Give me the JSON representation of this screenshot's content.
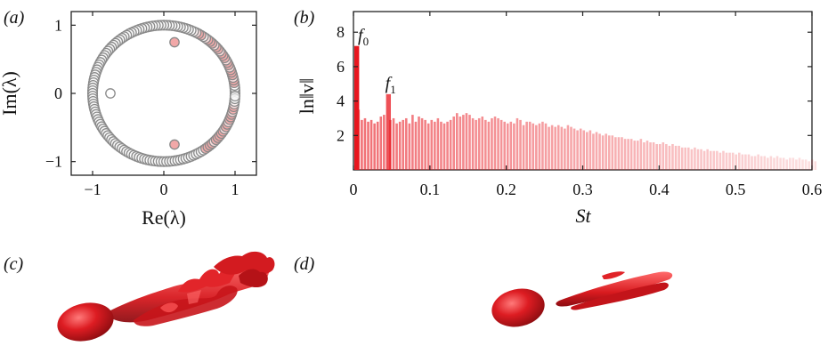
{
  "panels": {
    "a": "(a)",
    "b": "(b)",
    "c": "(c)",
    "d": "(d)"
  },
  "chart_data": [
    {
      "type": "scatter",
      "panel": "(a)",
      "xlabel": "Re(λ)",
      "ylabel": "Im(λ)",
      "xlim": [
        -1.3,
        1.3
      ],
      "ylim": [
        -1.2,
        1.2
      ],
      "xticks": [
        "−1",
        "0",
        "1"
      ],
      "yticks": [
        "−1",
        "0",
        "1"
      ],
      "xtick_values": [
        -1,
        0,
        1
      ],
      "ytick_values": [
        -1,
        0,
        1
      ],
      "marker_edge_color": "#8a8a8a",
      "unit_circle_eigenvalues": 160,
      "highlight_color": "#f2a8a8",
      "highlight_angles_deg": [
        -52,
        -48,
        -40,
        -35,
        -28,
        -20,
        -12,
        10,
        18,
        26,
        34,
        42,
        50,
        60
      ],
      "inner_points": [
        {
          "re": 0.15,
          "im": 0.75,
          "pink": true
        },
        {
          "re": 0.15,
          "im": -0.75,
          "pink": true
        },
        {
          "re": -0.75,
          "im": 0.0,
          "pink": false
        }
      ]
    },
    {
      "type": "bar",
      "panel": "(b)",
      "xlabel": "St",
      "ylabel": "ln‖v‖",
      "xlim": [
        0,
        0.6
      ],
      "ylim": [
        0,
        9.2
      ],
      "xticks": [
        "0",
        "0.1",
        "0.2",
        "0.3",
        "0.4",
        "0.5",
        "0.6"
      ],
      "xtick_values": [
        0,
        0.1,
        0.2,
        0.3,
        0.4,
        0.5,
        0.6
      ],
      "yticks": [
        "2",
        "4",
        "6",
        "8"
      ],
      "ytick_values": [
        2,
        4,
        6,
        8
      ],
      "bar_color": "#e8161e",
      "bar_count": 146,
      "x_start": 0.0,
      "x_step": 0.00415,
      "annotations": [
        {
          "text": "f",
          "sub": "0",
          "x": 0.0,
          "y": 7.7
        },
        {
          "text": "f",
          "sub": "1",
          "x": 0.045,
          "y": 4.9
        }
      ],
      "values": [
        7.2,
        3.5,
        2.9,
        3.0,
        2.8,
        2.9,
        2.7,
        2.8,
        3.1,
        3.2,
        4.4,
        2.9,
        3.0,
        2.7,
        2.8,
        2.9,
        3.0,
        2.7,
        3.2,
        2.8,
        3.1,
        3.0,
        2.9,
        2.7,
        2.9,
        2.8,
        3.0,
        2.8,
        2.7,
        2.8,
        2.9,
        3.1,
        3.3,
        3.1,
        3.2,
        3.3,
        3.2,
        3.0,
        2.9,
        3.0,
        3.1,
        2.9,
        2.8,
        3.0,
        3.1,
        3.0,
        2.9,
        2.8,
        2.7,
        2.8,
        2.7,
        3.0,
        2.9,
        2.6,
        2.8,
        2.8,
        2.7,
        2.6,
        2.7,
        2.8,
        2.7,
        2.5,
        2.6,
        2.5,
        2.6,
        2.5,
        2.4,
        2.6,
        2.5,
        2.4,
        2.3,
        2.4,
        2.3,
        2.2,
        2.3,
        2.1,
        2.2,
        2.1,
        2.0,
        2.1,
        2.0,
        2.0,
        1.9,
        1.9,
        1.9,
        1.8,
        1.8,
        1.8,
        1.7,
        1.7,
        1.8,
        1.6,
        1.7,
        1.6,
        1.6,
        1.5,
        1.5,
        1.6,
        1.5,
        1.4,
        1.5,
        1.4,
        1.4,
        1.3,
        1.3,
        1.3,
        1.2,
        1.3,
        1.2,
        1.2,
        1.1,
        1.2,
        1.1,
        1.1,
        1.1,
        1.0,
        1.1,
        1.0,
        1.0,
        1.0,
        0.9,
        1.0,
        0.9,
        0.9,
        0.9,
        0.8,
        0.8,
        0.9,
        0.8,
        0.8,
        0.7,
        0.8,
        0.7,
        0.8,
        0.7,
        0.7,
        0.6,
        0.7,
        0.7,
        0.6,
        0.7,
        0.6,
        0.6,
        0.5,
        0.6,
        0.5
      ]
    }
  ],
  "render_c": {
    "panel": "(c)",
    "color": "#d81a1f",
    "description": "isosurface of full flow: body + turbulent wake"
  },
  "render_d": {
    "panel": "(d)",
    "color": "#d81a1f",
    "description": "isosurface of mode: body + elongated streaks"
  }
}
